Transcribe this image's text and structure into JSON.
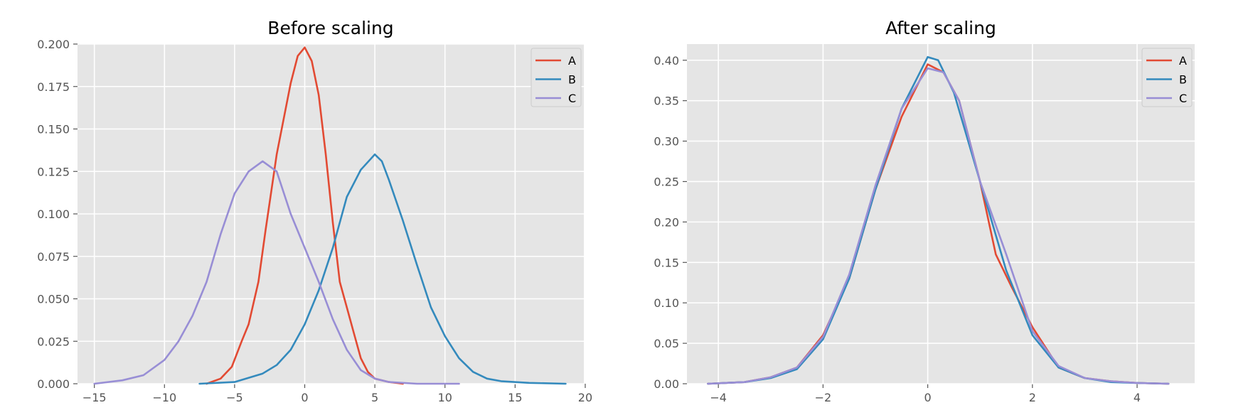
{
  "chart_data": [
    {
      "type": "line",
      "title": "Before scaling",
      "xlabel": "",
      "ylabel": "",
      "xlim": [
        -16.2,
        19.9
      ],
      "ylim": [
        0,
        0.2
      ],
      "xticks": [
        -15,
        -10,
        -5,
        0,
        5,
        10,
        15,
        20
      ],
      "yticks": [
        0,
        0.025,
        0.05,
        0.075,
        0.1,
        0.125,
        0.15,
        0.175,
        0.2
      ],
      "ytick_labels": [
        "0.000",
        "0.025",
        "0.050",
        "0.075",
        "0.100",
        "0.125",
        "0.150",
        "0.175",
        "0.200"
      ],
      "grid": true,
      "legend_position": "top-right",
      "series": [
        {
          "name": "A",
          "color": "#E24A33",
          "x": [
            -7,
            -6,
            -5.2,
            -4.5,
            -4,
            -3.3,
            -2.8,
            -2,
            -1,
            -0.5,
            0,
            0.5,
            1,
            1.5,
            2,
            2.5,
            3,
            3.5,
            4,
            4.5,
            5,
            6,
            7
          ],
          "y": [
            0,
            0.003,
            0.01,
            0.025,
            0.035,
            0.06,
            0.09,
            0.135,
            0.177,
            0.193,
            0.198,
            0.19,
            0.17,
            0.135,
            0.095,
            0.06,
            0.045,
            0.03,
            0.015,
            0.007,
            0.003,
            0.001,
            0
          ]
        },
        {
          "name": "B",
          "color": "#348ABD",
          "x": [
            -7.5,
            -5,
            -3,
            -2,
            -1,
            0,
            1,
            2,
            3,
            4,
            5,
            5.5,
            6,
            7,
            8,
            9,
            10,
            11,
            12,
            13,
            14,
            16,
            18.6
          ],
          "y": [
            0,
            0.001,
            0.006,
            0.011,
            0.02,
            0.035,
            0.055,
            0.08,
            0.11,
            0.126,
            0.135,
            0.131,
            0.12,
            0.096,
            0.07,
            0.045,
            0.028,
            0.015,
            0.007,
            0.003,
            0.0015,
            0.0005,
            0
          ]
        },
        {
          "name": "C",
          "color": "#988ED5",
          "x": [
            -15,
            -13,
            -11.5,
            -10,
            -9,
            -8,
            -7,
            -6,
            -5,
            -4,
            -3,
            -2,
            -1,
            0,
            1,
            2,
            3,
            4,
            5,
            6,
            8,
            11
          ],
          "y": [
            0,
            0.002,
            0.005,
            0.014,
            0.025,
            0.04,
            0.06,
            0.088,
            0.112,
            0.125,
            0.131,
            0.125,
            0.1,
            0.08,
            0.06,
            0.038,
            0.02,
            0.008,
            0.003,
            0.001,
            0,
            0
          ]
        }
      ]
    },
    {
      "type": "line",
      "title": "After scaling",
      "xlabel": "",
      "ylabel": "",
      "xlim": [
        -4.6,
        5.1
      ],
      "ylim": [
        0,
        0.42
      ],
      "xticks": [
        -4,
        -2,
        0,
        2,
        4
      ],
      "yticks": [
        0,
        0.05,
        0.1,
        0.15,
        0.2,
        0.25,
        0.3,
        0.35,
        0.4
      ],
      "ytick_labels": [
        "0.00",
        "0.05",
        "0.10",
        "0.15",
        "0.20",
        "0.25",
        "0.30",
        "0.35",
        "0.40"
      ],
      "grid": true,
      "legend_position": "top-right",
      "series": [
        {
          "name": "A",
          "color": "#E24A33",
          "x": [
            -4.2,
            -3.5,
            -3,
            -2.5,
            -2,
            -1.5,
            -1,
            -0.5,
            0,
            0.3,
            0.6,
            1,
            1.3,
            1.6,
            2,
            2.5,
            3,
            3.5,
            4,
            4.6
          ],
          "y": [
            0,
            0.002,
            0.008,
            0.02,
            0.06,
            0.13,
            0.24,
            0.33,
            0.395,
            0.385,
            0.35,
            0.25,
            0.16,
            0.12,
            0.07,
            0.02,
            0.007,
            0.003,
            0.001,
            0
          ]
        },
        {
          "name": "B",
          "color": "#348ABD",
          "x": [
            -4.2,
            -3.5,
            -3,
            -2.5,
            -2,
            -1.5,
            -1,
            -0.5,
            0,
            0.2,
            0.5,
            1,
            1.5,
            2,
            2.5,
            3,
            3.5,
            4,
            4.6
          ],
          "y": [
            0,
            0.002,
            0.007,
            0.018,
            0.055,
            0.13,
            0.24,
            0.34,
            0.404,
            0.4,
            0.36,
            0.25,
            0.14,
            0.06,
            0.02,
            0.007,
            0.002,
            0.001,
            0
          ]
        },
        {
          "name": "C",
          "color": "#988ED5",
          "x": [
            -4.2,
            -3.5,
            -3,
            -2.5,
            -2,
            -1.5,
            -1,
            -0.5,
            0,
            0.3,
            0.6,
            1,
            1.5,
            2,
            2.5,
            3,
            3.5,
            4,
            4.6
          ],
          "y": [
            0,
            0.002,
            0.008,
            0.02,
            0.058,
            0.135,
            0.245,
            0.34,
            0.39,
            0.385,
            0.35,
            0.25,
            0.16,
            0.065,
            0.022,
            0.007,
            0.003,
            0.001,
            0
          ]
        }
      ]
    }
  ]
}
